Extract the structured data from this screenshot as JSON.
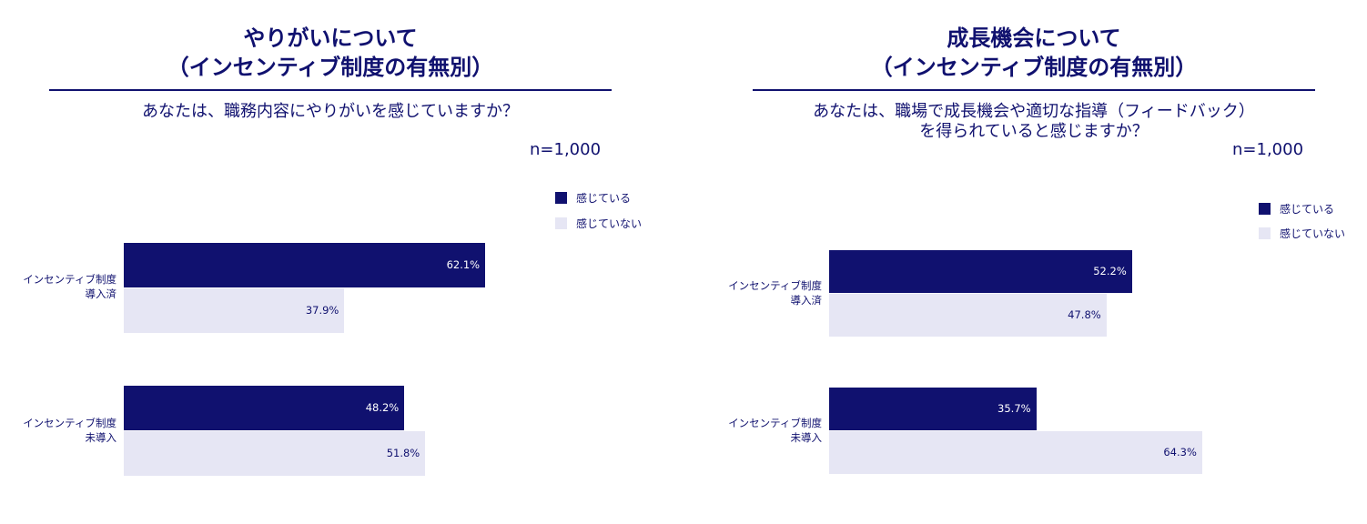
{
  "colors": {
    "dark": "#10116f",
    "light": "#e6e6f4",
    "text": "#10116f"
  },
  "chart_data": [
    {
      "type": "bar",
      "orientation": "horizontal",
      "title_lines": [
        "やりがいについて",
        "（インセンティブ制度の有無別）"
      ],
      "question_lines": [
        "あなたは、職務内容にやりがいを感じていますか？"
      ],
      "sample": "n=1,000",
      "categories": [
        [
          "インセンティブ制度",
          "導入済"
        ],
        [
          "インセンティブ制度",
          "未導入"
        ]
      ],
      "series": [
        {
          "name": "感じている",
          "color": "#10116f",
          "values": [
            62.1,
            48.2
          ]
        },
        {
          "name": "感じていない",
          "color": "#e6e6f4",
          "values": [
            37.9,
            51.8
          ]
        }
      ],
      "value_labels": [
        [
          "62.1%",
          "37.9%"
        ],
        [
          "48.2%",
          "51.8%"
        ]
      ],
      "xlim": [
        0,
        100
      ]
    },
    {
      "type": "bar",
      "orientation": "horizontal",
      "title_lines": [
        "成長機会について",
        "（インセンティブ制度の有無別）"
      ],
      "question_lines": [
        "あなたは、職場で成長機会や適切な指導（フィードバック）",
        "を得られていると感じますか？"
      ],
      "sample": "n=1,000",
      "categories": [
        [
          "インセンティブ制度",
          "導入済"
        ],
        [
          "インセンティブ制度",
          "未導入"
        ]
      ],
      "series": [
        {
          "name": "感じている",
          "color": "#10116f",
          "values": [
            52.2,
            35.7
          ]
        },
        {
          "name": "感じていない",
          "color": "#e6e6f4",
          "values": [
            47.8,
            64.3
          ]
        }
      ],
      "value_labels": [
        [
          "52.2%",
          "47.8%"
        ],
        [
          "35.7%",
          "64.3%"
        ]
      ],
      "xlim": [
        0,
        100
      ]
    }
  ]
}
